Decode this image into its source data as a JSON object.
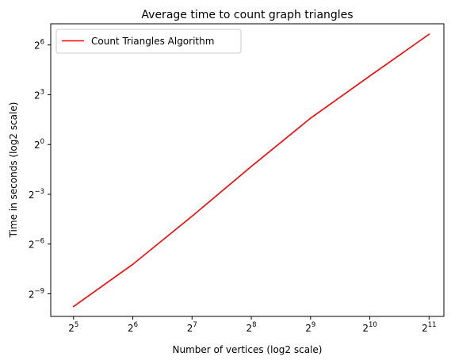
{
  "chart_data": {
    "type": "line",
    "title": "Average time to count graph triangles",
    "xlabel": "Number of vertices (log2 scale)",
    "ylabel": "Time in seconds (log2 scale)",
    "x_scale": "log2",
    "y_scale": "log2",
    "xlim": [
      24.5,
      2435
    ],
    "ylim": [
      0.00076,
      155
    ],
    "x_ticks": [
      {
        "base": "2",
        "exp": "5",
        "value": 32
      },
      {
        "base": "2",
        "exp": "6",
        "value": 64
      },
      {
        "base": "2",
        "exp": "7",
        "value": 128
      },
      {
        "base": "2",
        "exp": "8",
        "value": 256
      },
      {
        "base": "2",
        "exp": "9",
        "value": 512
      },
      {
        "base": "2",
        "exp": "10",
        "value": 1024
      },
      {
        "base": "2",
        "exp": "11",
        "value": 2048
      }
    ],
    "y_ticks": [
      {
        "base": "2",
        "exp": "−9",
        "value": 0.001953125
      },
      {
        "base": "2",
        "exp": "−6",
        "value": 0.015625
      },
      {
        "base": "2",
        "exp": "−3",
        "value": 0.125
      },
      {
        "base": "2",
        "exp": "0",
        "value": 1
      },
      {
        "base": "2",
        "exp": "3",
        "value": 8
      },
      {
        "base": "2",
        "exp": "6",
        "value": 64
      }
    ],
    "grid": false,
    "legend_position": "top-left",
    "series": [
      {
        "name": "Count Triangles Algorithm",
        "color": "#ff0000",
        "x": [
          32,
          64,
          128,
          256,
          512,
          1024,
          2048
        ],
        "y": [
          0.00115,
          0.0067,
          0.05,
          0.4,
          3.0,
          17.5,
          100
        ]
      }
    ]
  }
}
